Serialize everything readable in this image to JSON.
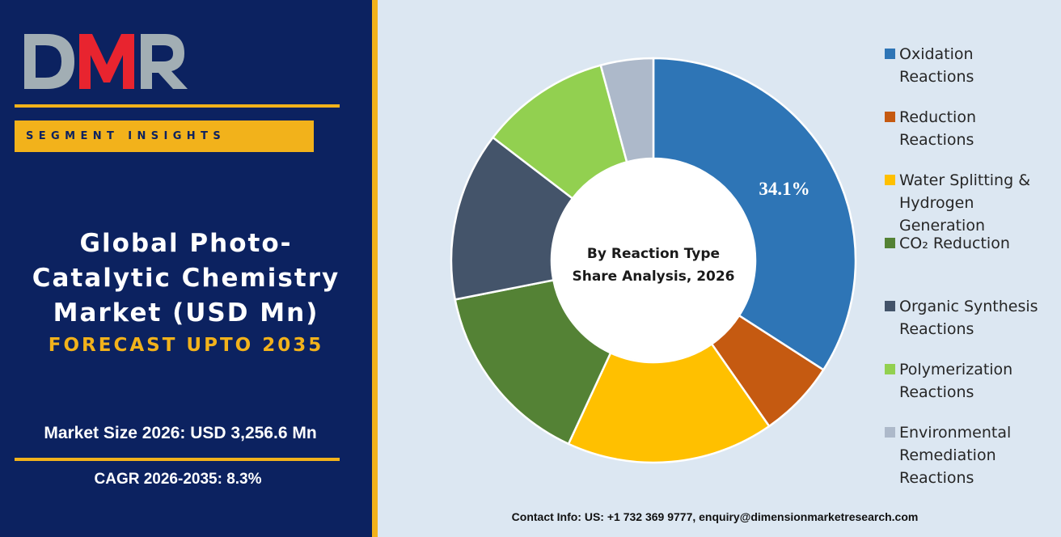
{
  "logo": {
    "text": "DMR"
  },
  "segment_insights": "SEGMENT INSIGHTS",
  "title_lines": [
    "Global Photo-",
    "Catalytic Chemistry",
    "Market (USD Mn)"
  ],
  "forecast": "FORECAST UPTO 2035",
  "market_size": "Market Size 2026: USD 3,256.6 Mn",
  "cagr": "CAGR 2026-2035: 8.3%",
  "contact": "Contact Info: US: +1 732 369 9777, enquiry@dimensionmarketresearch.com",
  "colors": {
    "panel": "#0c2260",
    "accent": "#f2b21b",
    "background": "#dce7f2",
    "logo_red": "#e8242f",
    "logo_gray": "#a2aeb4"
  },
  "chart_data": {
    "type": "pie",
    "center_label": [
      "By Reaction Type",
      "Share Analysis, 2026"
    ],
    "data_label": "34.1%",
    "series": [
      {
        "name": "Oxidation Reactions",
        "value": 34.1,
        "color": "#2e75b6"
      },
      {
        "name": "Reduction Reactions",
        "value": 6.2,
        "color": "#c55a11"
      },
      {
        "name": "Water Splitting & Hydrogen Generation",
        "value": 16.6,
        "color": "#ffc000"
      },
      {
        "name": "CO₂ Reduction",
        "value": 15.0,
        "color": "#548235"
      },
      {
        "name": "Organic Synthesis Reactions",
        "value": 13.5,
        "color": "#44546a"
      },
      {
        "name": "Polymerization Reactions",
        "value": 10.4,
        "color": "#92d050"
      },
      {
        "name": "Environmental Remediation Reactions",
        "value": 4.2,
        "color": "#adb9ca"
      }
    ],
    "legend_position": "right"
  }
}
